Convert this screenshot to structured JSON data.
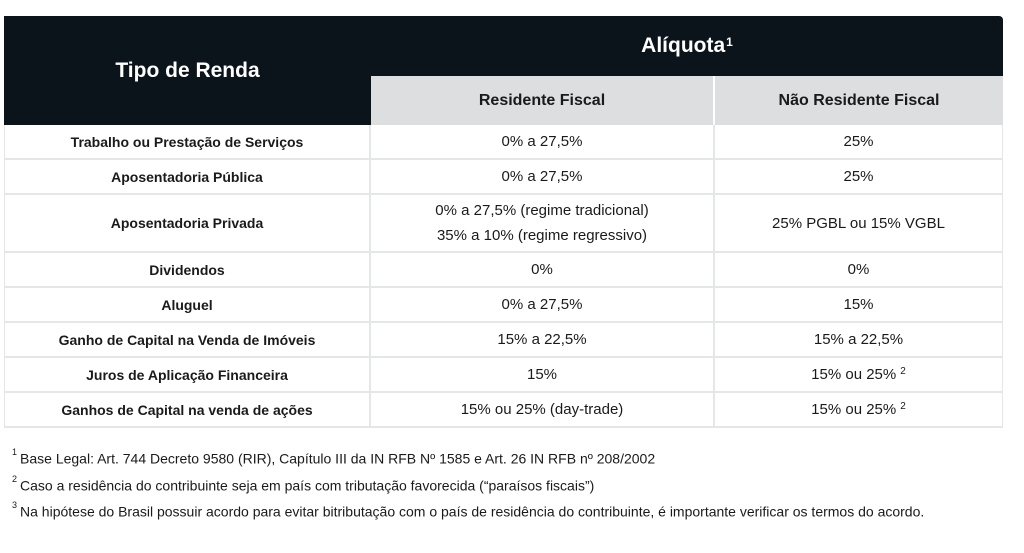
{
  "header": {
    "col1": "Tipo de Renda",
    "aliquota": "Alíquota",
    "aliquota_sup": "1",
    "col2": "Residente Fiscal",
    "col3": "Não Residente Fiscal"
  },
  "rows": [
    {
      "tipo": "Trabalho ou Prestação de Serviços",
      "res": [
        "0% a 27,5%"
      ],
      "nres": "25%",
      "nres_sup": ""
    },
    {
      "tipo": "Aposentadoria Pública",
      "res": [
        "0% a 27,5%"
      ],
      "nres": "25%",
      "nres_sup": ""
    },
    {
      "tipo": "Aposentadoria Privada",
      "res": [
        "0% a 27,5% (regime tradicional)",
        "35% a 10% (regime regressivo)"
      ],
      "nres": "25% PGBL ou 15% VGBL",
      "nres_sup": ""
    },
    {
      "tipo": "Dividendos",
      "res": [
        "0%"
      ],
      "nres": "0%",
      "nres_sup": ""
    },
    {
      "tipo": "Aluguel",
      "res": [
        "0% a 27,5%"
      ],
      "nres": "15%",
      "nres_sup": ""
    },
    {
      "tipo": "Ganho de Capital na Venda de Imóveis",
      "res": [
        "15% a 22,5%"
      ],
      "nres": "15% a 22,5%",
      "nres_sup": ""
    },
    {
      "tipo": "Juros de Aplicação Financeira",
      "res": [
        "15%"
      ],
      "nres": "15% ou 25%",
      "nres_sup": "2"
    },
    {
      "tipo": "Ganhos de Capital na venda de ações",
      "res": [
        "15% ou 25% (day-trade)"
      ],
      "nres": "15% ou 25%",
      "nres_sup": "2"
    }
  ],
  "notes": [
    {
      "num": "1",
      "text": "Base Legal: Art. 744 Decreto 9580 (RIR), Capítulo III da IN RFB Nº 1585 e Art. 26 IN RFB nº 208/2002"
    },
    {
      "num": "2",
      "text": "Caso a residência do contribuinte seja em país com tributação favorecida (“paraísos fiscais”)"
    },
    {
      "num": "3",
      "text": "Na hipótese do Brasil possuir acordo para evitar bitributação com o país de residência do contribuinte, é importante verificar os termos do acordo."
    }
  ]
}
